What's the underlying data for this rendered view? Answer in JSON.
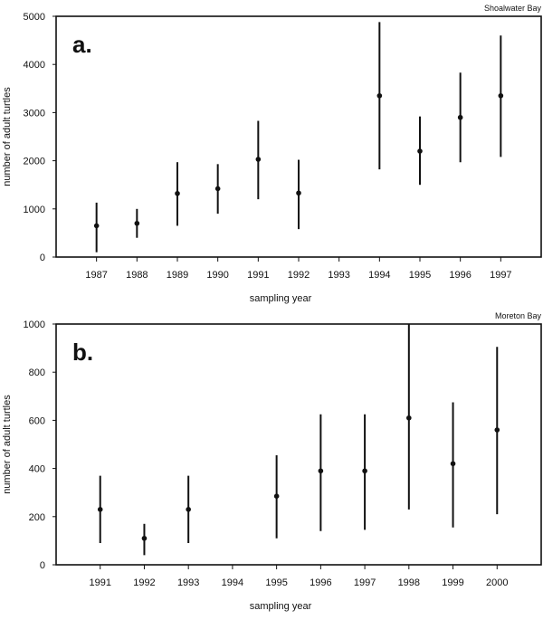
{
  "chart_data": [
    {
      "type": "scatter",
      "panel_label": "a.",
      "title": "Shoalwater Bay",
      "xlabel": "sampling year",
      "ylabel": "number of adult turtles",
      "xlim": [
        1986,
        1998
      ],
      "ylim": [
        0,
        5000
      ],
      "yticks": [
        0,
        1000,
        2000,
        3000,
        4000,
        5000
      ],
      "xticks": [
        1987,
        1988,
        1989,
        1990,
        1991,
        1992,
        1993,
        1994,
        1995,
        1996,
        1997
      ],
      "grid": false,
      "points": [
        {
          "x": 1987,
          "y": 650,
          "low": 100,
          "high": 1130
        },
        {
          "x": 1988,
          "y": 700,
          "low": 400,
          "high": 1000
        },
        {
          "x": 1989,
          "y": 1320,
          "low": 650,
          "high": 1970
        },
        {
          "x": 1990,
          "y": 1420,
          "low": 900,
          "high": 1930
        },
        {
          "x": 1991,
          "y": 2030,
          "low": 1200,
          "high": 2830
        },
        {
          "x": 1992,
          "y": 1330,
          "low": 580,
          "high": 2020
        },
        {
          "x": 1994,
          "y": 3350,
          "low": 1820,
          "high": 4880
        },
        {
          "x": 1995,
          "y": 2200,
          "low": 1500,
          "high": 2920
        },
        {
          "x": 1996,
          "y": 2900,
          "low": 1970,
          "high": 3830
        },
        {
          "x": 1997,
          "y": 3350,
          "low": 2080,
          "high": 4600
        }
      ]
    },
    {
      "type": "scatter",
      "panel_label": "b.",
      "title": "Moreton Bay",
      "xlabel": "sampling year",
      "ylabel": "number of adult turtles",
      "xlim": [
        1990,
        2001
      ],
      "ylim": [
        0,
        1000
      ],
      "yticks": [
        0,
        200,
        400,
        600,
        800,
        1000
      ],
      "xticks": [
        1991,
        1992,
        1993,
        1994,
        1995,
        1996,
        1997,
        1998,
        1999,
        2000
      ],
      "grid": false,
      "points": [
        {
          "x": 1991,
          "y": 230,
          "low": 90,
          "high": 370
        },
        {
          "x": 1992,
          "y": 110,
          "low": 40,
          "high": 170
        },
        {
          "x": 1993,
          "y": 230,
          "low": 90,
          "high": 370
        },
        {
          "x": 1995,
          "y": 285,
          "low": 110,
          "high": 455
        },
        {
          "x": 1996,
          "y": 390,
          "low": 140,
          "high": 625
        },
        {
          "x": 1997,
          "y": 390,
          "low": 145,
          "high": 625
        },
        {
          "x": 1998,
          "y": 610,
          "low": 230,
          "high": 1000
        },
        {
          "x": 1999,
          "y": 420,
          "low": 155,
          "high": 675
        },
        {
          "x": 2000,
          "y": 560,
          "low": 210,
          "high": 905
        }
      ]
    }
  ]
}
